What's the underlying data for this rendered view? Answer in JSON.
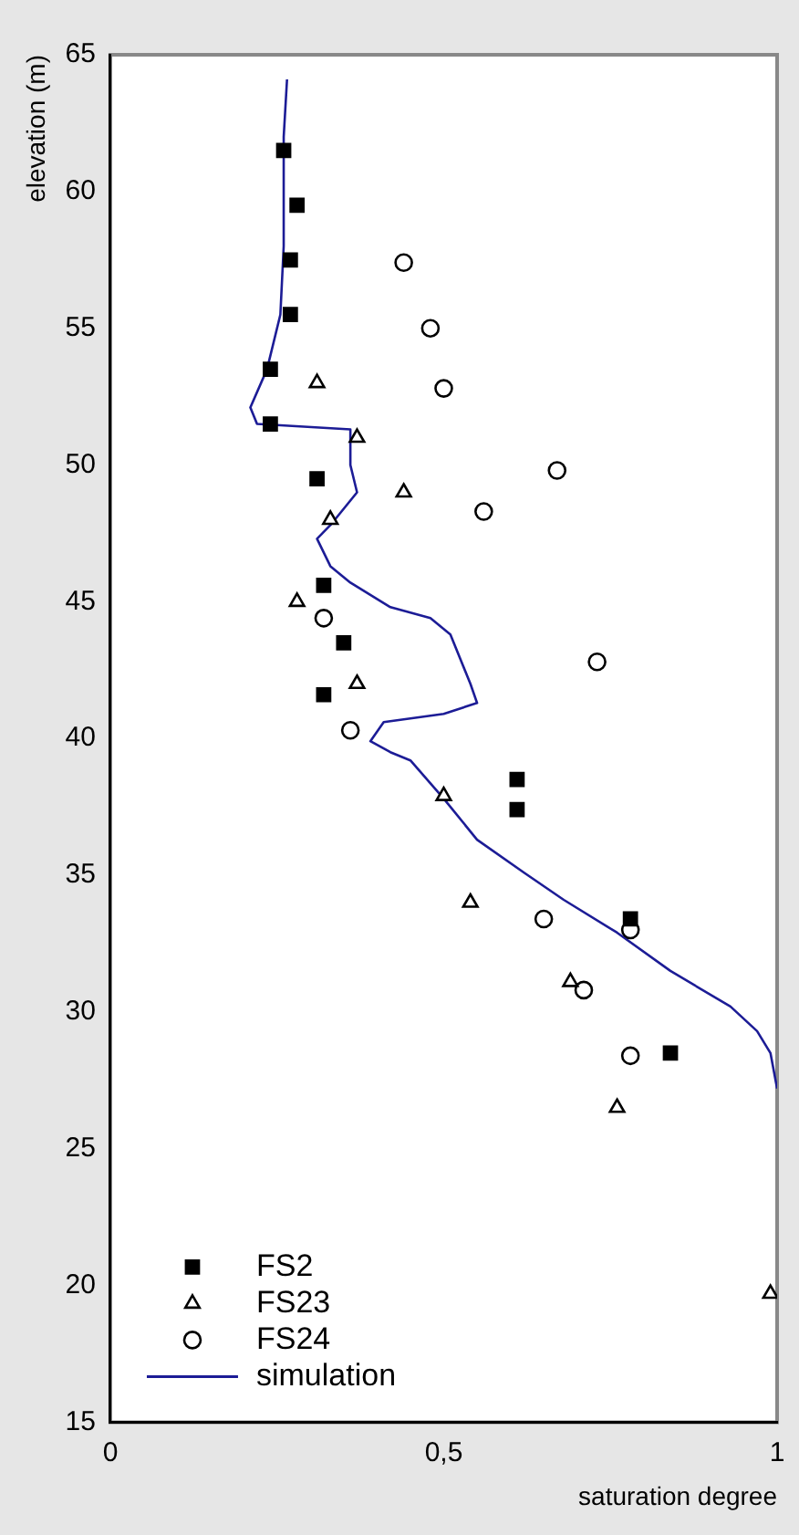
{
  "chart_data": {
    "type": "scatter",
    "xlabel": "saturation degree",
    "ylabel": "elevation (m)",
    "xlim": [
      0,
      1
    ],
    "xticks": [
      0,
      {
        "value": 0.5,
        "label": "0,5"
      },
      1
    ],
    "ylim": [
      15,
      65
    ],
    "yticks": [
      15,
      20,
      25,
      30,
      35,
      40,
      45,
      50,
      55,
      60,
      65
    ],
    "grid": false,
    "legend": "bottom left",
    "series": [
      {
        "name": "FS2",
        "color": "#000000",
        "marker": "square",
        "x": [
          0.26,
          0.28,
          0.27,
          0.27,
          0.24,
          0.24,
          0.31,
          0.32,
          0.35,
          0.32,
          0.61,
          0.61,
          0.78,
          0.84
        ],
        "values": [
          61.5,
          59.5,
          57.5,
          55.5,
          53.5,
          51.5,
          49.5,
          45.6,
          43.5,
          41.6,
          38.5,
          37.4,
          33.4,
          28.5
        ]
      },
      {
        "name": "FS23",
        "color": "#000000",
        "marker": "triangle",
        "x": [
          0.31,
          0.37,
          0.44,
          0.33,
          0.28,
          0.37,
          0.5,
          0.54,
          0.69,
          0.76,
          0.99
        ],
        "values": [
          53,
          51,
          49,
          48,
          45,
          42,
          37.9,
          34,
          31.1,
          26.5,
          19.7
        ]
      },
      {
        "name": "FS24",
        "color": "#000000",
        "marker": "circle",
        "x": [
          0.44,
          0.48,
          0.5,
          0.67,
          0.56,
          0.32,
          0.73,
          0.36,
          0.65,
          0.78,
          0.71,
          0.78
        ],
        "values": [
          57.4,
          55,
          52.8,
          49.8,
          48.3,
          44.4,
          42.8,
          40.3,
          33.4,
          33,
          30.8,
          28.4
        ]
      },
      {
        "name": "simulation",
        "type": "line",
        "color": "#1c1c96",
        "marker": "none",
        "line_style": "solid",
        "x": [
          0.265,
          0.26,
          0.26,
          0.255,
          0.235,
          0.21,
          0.22,
          0.36,
          0.36,
          0.37,
          0.33,
          0.31,
          0.33,
          0.36,
          0.42,
          0.48,
          0.51,
          0.52,
          0.54,
          0.55,
          0.5,
          0.41,
          0.39,
          0.42,
          0.45,
          0.5,
          0.55,
          0.62,
          0.68,
          0.76,
          0.84,
          0.93,
          0.97,
          0.99,
          1.0
        ],
        "values": [
          64.1,
          62,
          58,
          55.5,
          53.5,
          52.1,
          51.5,
          51.3,
          50,
          49,
          47.8,
          47.3,
          46.3,
          45.7,
          44.8,
          44.4,
          43.8,
          43.2,
          42,
          41.3,
          40.9,
          40.6,
          39.9,
          39.5,
          39.2,
          37.8,
          36.3,
          35.1,
          34.1,
          32.9,
          31.5,
          30.2,
          29.3,
          28.5,
          27.2
        ]
      }
    ]
  }
}
